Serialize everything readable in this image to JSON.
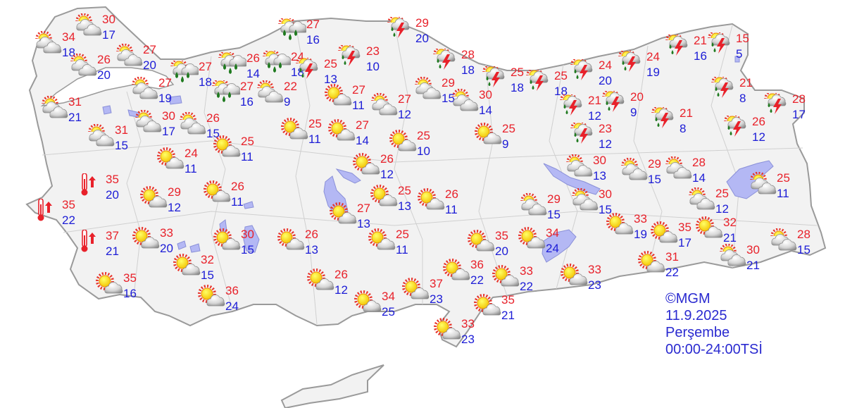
{
  "map": {
    "colors": {
      "land": "#f2f2f2",
      "border": "#9a9a9a",
      "water": "#b4b8f4",
      "max_temp": "#e8212a",
      "min_temp": "#1c1cd6",
      "legend": "#2a2ad0"
    },
    "stations": [
      {
        "icon": "partly-cloudy",
        "max": "34",
        "min": "18"
      },
      {
        "icon": "partly-cloudy",
        "max": "30",
        "min": "17"
      },
      {
        "icon": "partly-cloudy",
        "max": "26",
        "min": "20"
      },
      {
        "icon": "partly-cloudy",
        "max": "27",
        "min": "20"
      },
      {
        "icon": "rain",
        "max": "27",
        "min": "18"
      },
      {
        "icon": "partly-cloudy",
        "max": "27",
        "min": "19"
      },
      {
        "icon": "partly-cloudy",
        "max": "31",
        "min": "21"
      },
      {
        "icon": "partly-cloudy",
        "max": "31",
        "min": "15"
      },
      {
        "icon": "partly-cloudy",
        "max": "30",
        "min": "17"
      },
      {
        "icon": "partly-cloudy",
        "max": "26",
        "min": "15"
      },
      {
        "icon": "rain",
        "max": "26",
        "min": "14"
      },
      {
        "icon": "rain",
        "max": "27",
        "min": "16"
      },
      {
        "icon": "rain",
        "max": "27",
        "min": "16"
      },
      {
        "icon": "rain",
        "max": "24",
        "min": "18"
      },
      {
        "icon": "thunderstorm",
        "max": "25",
        "min": "13"
      },
      {
        "icon": "thunderstorm",
        "max": "23",
        "min": "10"
      },
      {
        "icon": "thunderstorm",
        "max": "29",
        "min": "20"
      },
      {
        "icon": "partly-cloudy",
        "max": "22",
        "min": "9"
      },
      {
        "icon": "mostly-sunny",
        "max": "27",
        "min": "11"
      },
      {
        "icon": "partly-cloudy",
        "max": "27",
        "min": "12"
      },
      {
        "icon": "partly-cloudy",
        "max": "29",
        "min": "15"
      },
      {
        "icon": "partly-cloudy",
        "max": "30",
        "min": "14"
      },
      {
        "icon": "thunderstorm",
        "max": "28",
        "min": "18"
      },
      {
        "icon": "thunderstorm",
        "max": "25",
        "min": "18"
      },
      {
        "icon": "thunderstorm",
        "max": "25",
        "min": "18"
      },
      {
        "icon": "mostly-sunny",
        "max": "25",
        "min": "11"
      },
      {
        "icon": "mostly-sunny",
        "max": "27",
        "min": "14"
      },
      {
        "icon": "mostly-sunny",
        "max": "25",
        "min": "10"
      },
      {
        "icon": "mostly-sunny",
        "max": "25",
        "min": "9"
      },
      {
        "icon": "mostly-sunny",
        "max": "24",
        "min": "11"
      },
      {
        "icon": "mostly-sunny",
        "max": "25",
        "min": "11"
      },
      {
        "icon": "mostly-sunny",
        "max": "26",
        "min": "12"
      },
      {
        "icon": "hot",
        "max": "35",
        "min": "20"
      },
      {
        "icon": "hot",
        "max": "35",
        "min": "22"
      },
      {
        "icon": "hot",
        "max": "37",
        "min": "21"
      },
      {
        "icon": "mostly-sunny",
        "max": "29",
        "min": "12"
      },
      {
        "icon": "mostly-sunny",
        "max": "26",
        "min": "11"
      },
      {
        "icon": "mostly-sunny",
        "max": "25",
        "min": "13"
      },
      {
        "icon": "mostly-sunny",
        "max": "26",
        "min": "11"
      },
      {
        "icon": "mostly-sunny",
        "max": "27",
        "min": "13"
      },
      {
        "icon": "mostly-sunny",
        "max": "33",
        "min": "20"
      },
      {
        "icon": "mostly-sunny",
        "max": "30",
        "min": "15"
      },
      {
        "icon": "mostly-sunny",
        "max": "26",
        "min": "13"
      },
      {
        "icon": "mostly-sunny",
        "max": "25",
        "min": "11"
      },
      {
        "icon": "mostly-sunny",
        "max": "32",
        "min": "15"
      },
      {
        "icon": "mostly-sunny",
        "max": "35",
        "min": "16"
      },
      {
        "icon": "mostly-sunny",
        "max": "36",
        "min": "24"
      },
      {
        "icon": "mostly-sunny",
        "max": "26",
        "min": "12"
      },
      {
        "icon": "mostly-sunny",
        "max": "34",
        "min": "25"
      },
      {
        "icon": "mostly-sunny",
        "max": "37",
        "min": "23"
      },
      {
        "icon": "mostly-sunny",
        "max": "36",
        "min": "22"
      },
      {
        "icon": "mostly-sunny",
        "max": "35",
        "min": "20"
      },
      {
        "icon": "mostly-sunny",
        "max": "34",
        "min": "24"
      },
      {
        "icon": "mostly-sunny",
        "max": "33",
        "min": "22"
      },
      {
        "icon": "mostly-sunny",
        "max": "35",
        "min": "21"
      },
      {
        "icon": "mostly-sunny",
        "max": "33",
        "min": "23"
      },
      {
        "icon": "mostly-sunny",
        "max": "33",
        "min": "23"
      },
      {
        "icon": "partly-cloudy",
        "max": "29",
        "min": "15"
      },
      {
        "icon": "partly-cloudy",
        "max": "30",
        "min": "15"
      },
      {
        "icon": "partly-cloudy",
        "max": "30",
        "min": "13"
      },
      {
        "icon": "partly-cloudy",
        "max": "29",
        "min": "15"
      },
      {
        "icon": "partly-cloudy",
        "max": "28",
        "min": "14"
      },
      {
        "icon": "partly-cloudy",
        "max": "25",
        "min": "11"
      },
      {
        "icon": "partly-cloudy",
        "max": "25",
        "min": "12"
      },
      {
        "icon": "mostly-sunny",
        "max": "33",
        "min": "19"
      },
      {
        "icon": "mostly-sunny",
        "max": "35",
        "min": "17"
      },
      {
        "icon": "mostly-sunny",
        "max": "32",
        "min": "21"
      },
      {
        "icon": "mostly-sunny",
        "max": "31",
        "min": "22"
      },
      {
        "icon": "partly-cloudy",
        "max": "30",
        "min": "21"
      },
      {
        "icon": "partly-cloudy",
        "max": "28",
        "min": "15"
      },
      {
        "icon": "thunderstorm",
        "max": "24",
        "min": "20"
      },
      {
        "icon": "thunderstorm",
        "max": "24",
        "min": "19"
      },
      {
        "icon": "thunderstorm",
        "max": "21",
        "min": "16"
      },
      {
        "icon": "thunderstorm",
        "max": "15",
        "min": "5"
      },
      {
        "icon": "thunderstorm",
        "max": "21",
        "min": "12"
      },
      {
        "icon": "thunderstorm",
        "max": "20",
        "min": "9"
      },
      {
        "icon": "thunderstorm",
        "max": "23",
        "min": "12"
      },
      {
        "icon": "thunderstorm",
        "max": "21",
        "min": "8"
      },
      {
        "icon": "thunderstorm",
        "max": "21",
        "min": "8"
      },
      {
        "icon": "thunderstorm",
        "max": "28",
        "min": "17"
      },
      {
        "icon": "thunderstorm",
        "max": "26",
        "min": "12"
      }
    ]
  },
  "legend": {
    "copyright": "©MGM",
    "date": "11.9.2025",
    "day": "Perşembe",
    "period": "00:00-24:00TSİ"
  }
}
